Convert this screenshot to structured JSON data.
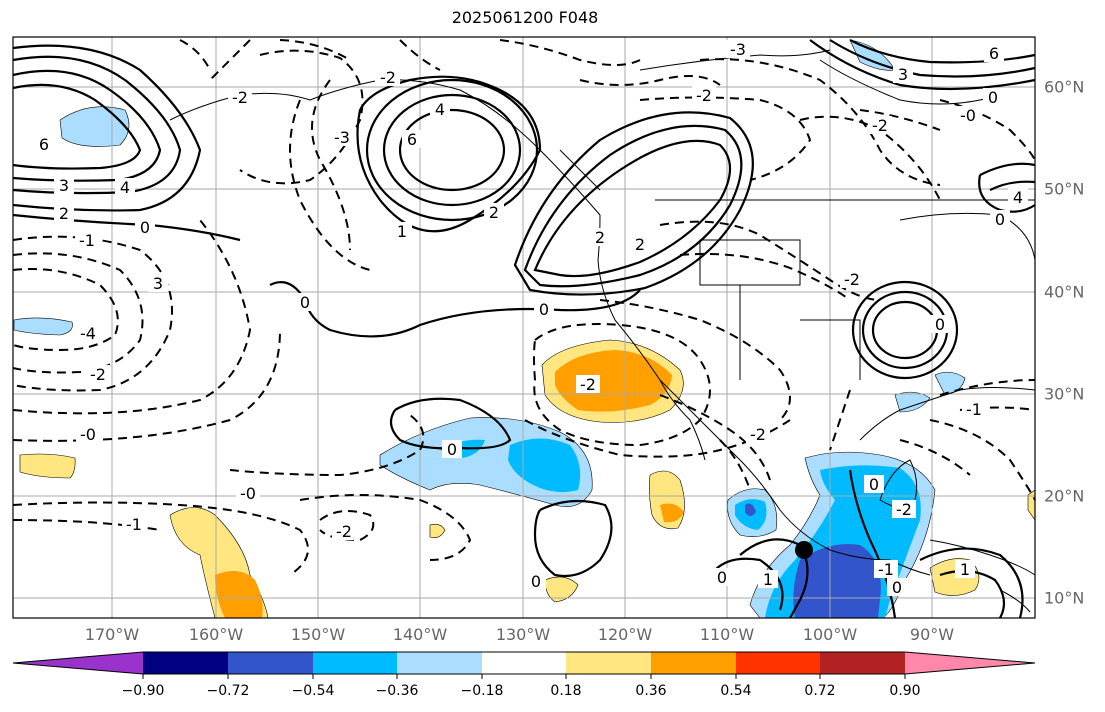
{
  "title": "2025061200 F048",
  "map": {
    "lon_ticks": [
      "170°W",
      "160°W",
      "150°W",
      "140°W",
      "130°W",
      "120°W",
      "110°W",
      "100°W",
      "90°W"
    ],
    "lat_ticks": [
      "60°N",
      "50°N",
      "40°N",
      "30°N",
      "20°N",
      "10°N"
    ],
    "colors": {
      "frame": "#000000",
      "grid": "#aaaaaa",
      "coast": "#000000",
      "tick_label": "#666666"
    }
  },
  "colorbar": {
    "ticks": [
      "−0.90",
      "−0.72",
      "−0.54",
      "−0.36",
      "−0.18",
      "0.18",
      "0.36",
      "0.54",
      "0.72",
      "0.90"
    ],
    "colors": [
      "#9933cc",
      "#000080",
      "#3355cc",
      "#00bbff",
      "#aaddff",
      "#ffffff",
      "#ffe680",
      "#ffa000",
      "#ff3300",
      "#b22222",
      "#ff88aa"
    ]
  },
  "contour_labels": [
    "6",
    "3",
    "4",
    "2",
    "0",
    "-1",
    "3",
    "-4",
    "-2",
    "-0",
    "4",
    "6",
    "-2",
    "0",
    "2",
    "-2",
    "-0",
    "0",
    "-2",
    "2",
    "-2",
    "-3",
    "-2",
    "0",
    "0",
    "-1",
    "-2",
    "0",
    "6",
    "3",
    "0",
    "-2",
    "-0",
    "4",
    "1",
    "0",
    "-2",
    "1",
    "-1",
    "0",
    "0",
    "-1",
    "0",
    "1",
    "-2",
    "-3",
    "-2",
    "2"
  ]
}
